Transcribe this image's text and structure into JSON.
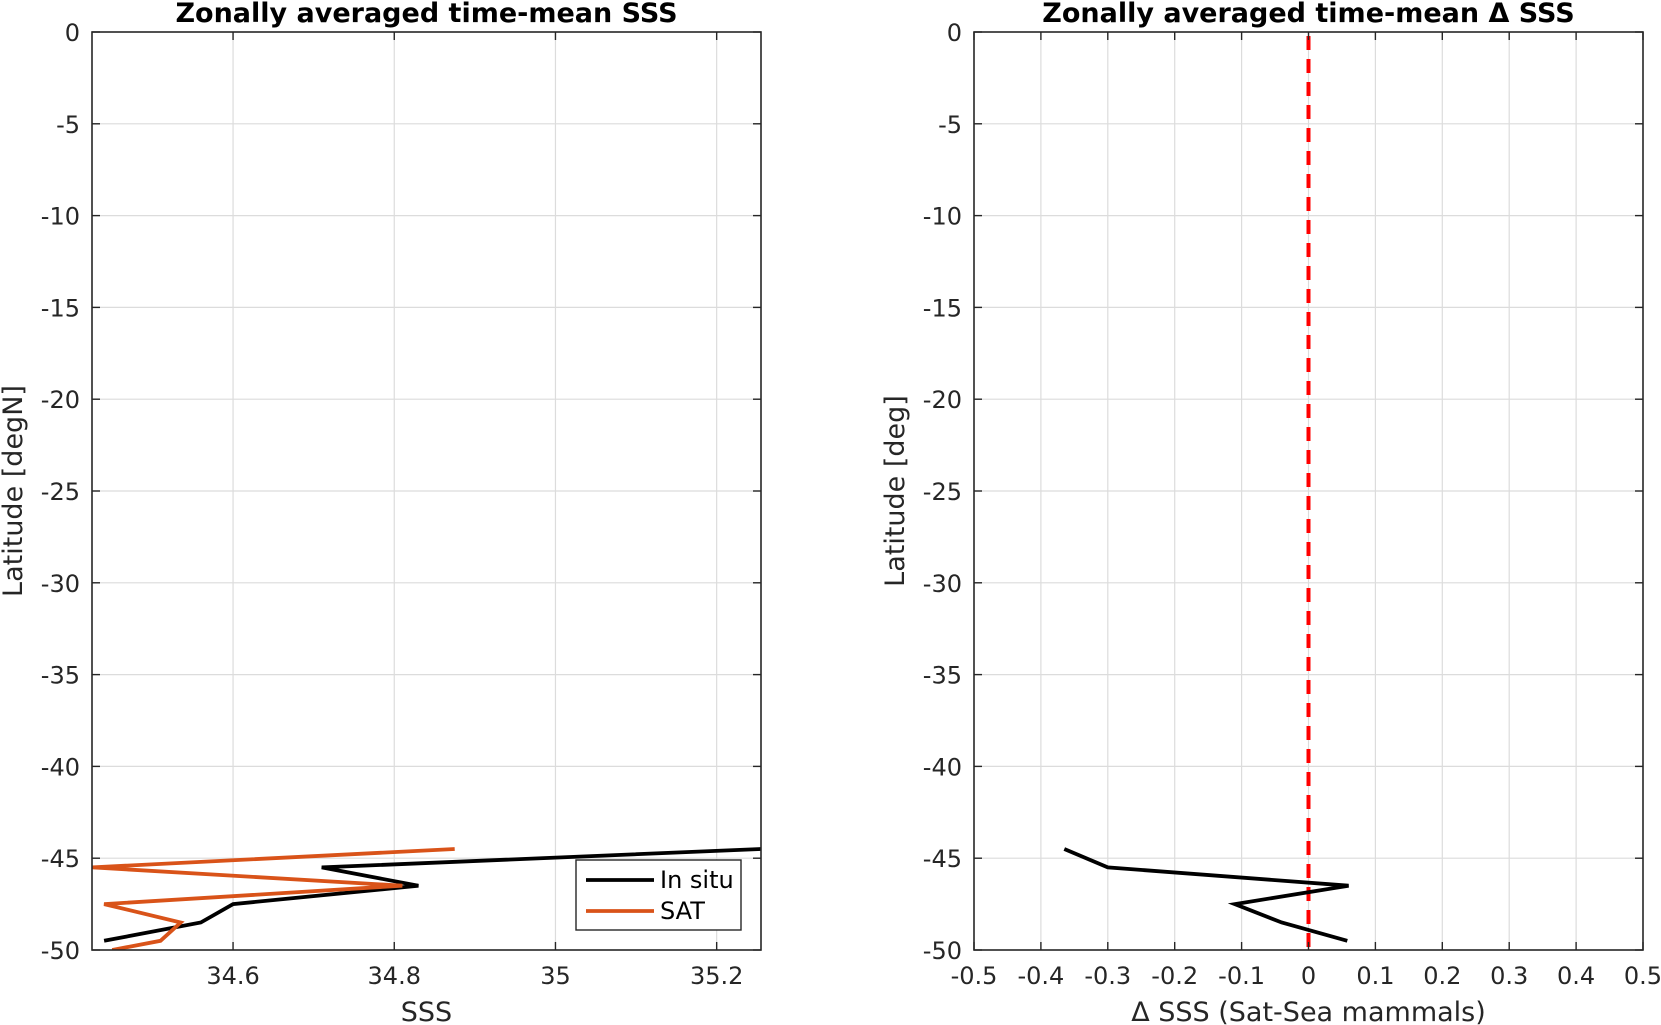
{
  "chart_data": [
    {
      "type": "line",
      "title": "Zonally averaged time-mean SSS",
      "xlabel": "SSS",
      "ylabel": "Latitude [degN]",
      "xlim": [
        34.425,
        35.255
      ],
      "ylim": [
        -50,
        0
      ],
      "xticks": [
        34.6,
        34.8,
        35,
        35.2
      ],
      "xtick_labels": [
        "34.6",
        "34.8",
        "35",
        "35.2"
      ],
      "yticks": [
        0,
        -5,
        -10,
        -15,
        -20,
        -25,
        -30,
        -35,
        -40,
        -45,
        -50
      ],
      "ytick_labels": [
        "0",
        "-5",
        "-10",
        "-15",
        "-20",
        "-25",
        "-30",
        "-35",
        "-40",
        "-45",
        "-50"
      ],
      "grid": true,
      "legend": "inside-bottom-right",
      "series": [
        {
          "name": "In situ",
          "color": "#000000",
          "x": [
            35.255,
            34.71,
            34.83,
            34.6,
            34.56,
            34.44
          ],
          "y": [
            -44.5,
            -45.5,
            -46.5,
            -47.5,
            -48.5,
            -49.5
          ]
        },
        {
          "name": "SAT",
          "color": "#d95319",
          "x": [
            34.875,
            34.425,
            34.81,
            34.44,
            34.535,
            34.51,
            34.45
          ],
          "y": [
            -44.5,
            -45.5,
            -46.5,
            -47.5,
            -48.5,
            -49.5,
            -50
          ]
        }
      ]
    },
    {
      "type": "line",
      "title": "Zonally averaged time-mean Δ SSS",
      "xlabel": "Δ SSS (Sat-Sea mammals)",
      "ylabel": "Latitude [deg]",
      "xlim": [
        -0.5,
        0.5
      ],
      "ylim": [
        -50,
        0
      ],
      "xticks": [
        -0.5,
        -0.4,
        -0.3,
        -0.2,
        -0.1,
        0,
        0.1,
        0.2,
        0.3,
        0.4,
        0.5
      ],
      "xtick_labels": [
        "-0.5",
        "-0.4",
        "-0.3",
        "-0.2",
        "-0.1",
        "0",
        "0.1",
        "0.2",
        "0.3",
        "0.4",
        "0.5"
      ],
      "yticks": [
        0,
        -5,
        -10,
        -15,
        -20,
        -25,
        -30,
        -35,
        -40,
        -45,
        -50
      ],
      "ytick_labels": [
        "0",
        "-5",
        "-10",
        "-15",
        "-20",
        "-25",
        "-30",
        "-35",
        "-40",
        "-45",
        "-50"
      ],
      "grid": true,
      "reference_line": {
        "x": 0,
        "style": "dashed",
        "color": "#ff0000"
      },
      "series": [
        {
          "color": "#000000",
          "x": [
            -0.365,
            -0.3,
            0.06,
            -0.11,
            -0.04,
            0.058
          ],
          "y": [
            -44.5,
            -45.5,
            -46.5,
            -47.5,
            -48.5,
            -49.5
          ]
        }
      ]
    }
  ]
}
